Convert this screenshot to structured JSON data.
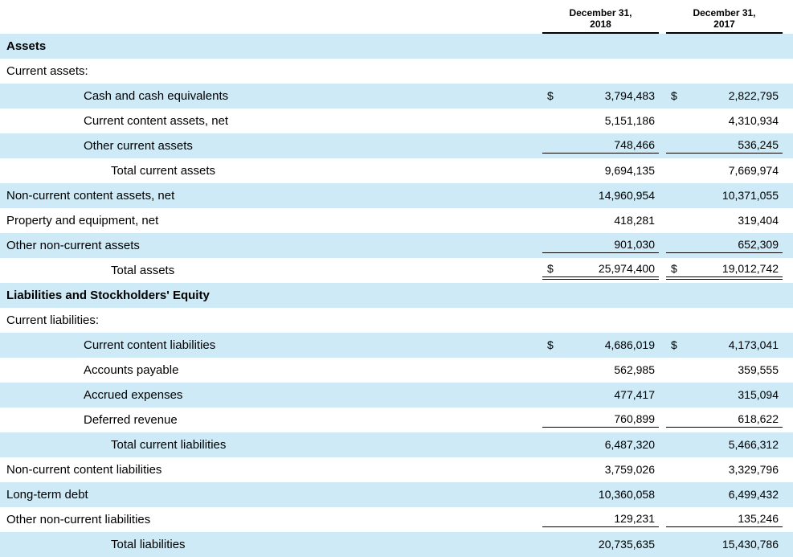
{
  "colors": {
    "row_highlight": "#cdeaf6",
    "text": "#000000",
    "rule": "#000000"
  },
  "table": {
    "currency_symbol": "$",
    "headers": [
      {
        "line1": "December 31,",
        "line2": "2018"
      },
      {
        "line1": "December 31,",
        "line2": "2017"
      }
    ],
    "rows": [
      {
        "label": "Assets",
        "indent": 0,
        "bold": true,
        "shaded": true,
        "dollar": false,
        "v1": "",
        "v2": ""
      },
      {
        "label": "Current assets:",
        "indent": 0,
        "bold": false,
        "shaded": false,
        "dollar": false,
        "v1": "",
        "v2": ""
      },
      {
        "label": "Cash and cash equivalents",
        "indent": 1,
        "bold": false,
        "shaded": true,
        "dollar": true,
        "v1": "3,794,483",
        "v2": "2,822,795"
      },
      {
        "label": "Current content assets, net",
        "indent": 1,
        "bold": false,
        "shaded": false,
        "dollar": false,
        "v1": "5,151,186",
        "v2": "4,310,934"
      },
      {
        "label": "Other current assets",
        "indent": 1,
        "bold": false,
        "shaded": true,
        "dollar": false,
        "v1": "748,466",
        "v2": "536,245",
        "underline": "single"
      },
      {
        "label": "Total current assets",
        "indent": 2,
        "bold": false,
        "shaded": false,
        "dollar": false,
        "v1": "9,694,135",
        "v2": "7,669,974"
      },
      {
        "label": "Non-current content assets, net",
        "indent": 0,
        "bold": false,
        "shaded": true,
        "dollar": false,
        "v1": "14,960,954",
        "v2": "10,371,055"
      },
      {
        "label": "Property and equipment, net",
        "indent": 0,
        "bold": false,
        "shaded": false,
        "dollar": false,
        "v1": "418,281",
        "v2": "319,404"
      },
      {
        "label": "Other non-current assets",
        "indent": 0,
        "bold": false,
        "shaded": true,
        "dollar": false,
        "v1": "901,030",
        "v2": "652,309",
        "underline": "single"
      },
      {
        "label": "Total assets",
        "indent": 2,
        "bold": false,
        "shaded": false,
        "dollar": true,
        "v1": "25,974,400",
        "v2": "19,012,742",
        "underline": "double"
      },
      {
        "label": "Liabilities and Stockholders' Equity",
        "indent": 0,
        "bold": true,
        "shaded": true,
        "dollar": false,
        "v1": "",
        "v2": ""
      },
      {
        "label": "Current liabilities:",
        "indent": 0,
        "bold": false,
        "shaded": false,
        "dollar": false,
        "v1": "",
        "v2": ""
      },
      {
        "label": "Current content liabilities",
        "indent": 1,
        "bold": false,
        "shaded": true,
        "dollar": true,
        "v1": "4,686,019",
        "v2": "4,173,041"
      },
      {
        "label": "Accounts payable",
        "indent": 1,
        "bold": false,
        "shaded": false,
        "dollar": false,
        "v1": "562,985",
        "v2": "359,555"
      },
      {
        "label": "Accrued expenses",
        "indent": 1,
        "bold": false,
        "shaded": true,
        "dollar": false,
        "v1": "477,417",
        "v2": "315,094"
      },
      {
        "label": "Deferred revenue",
        "indent": 1,
        "bold": false,
        "shaded": false,
        "dollar": false,
        "v1": "760,899",
        "v2": "618,622",
        "underline": "single"
      },
      {
        "label": "Total current liabilities",
        "indent": 2,
        "bold": false,
        "shaded": true,
        "dollar": false,
        "v1": "6,487,320",
        "v2": "5,466,312"
      },
      {
        "label": "Non-current content liabilities",
        "indent": 0,
        "bold": false,
        "shaded": false,
        "dollar": false,
        "v1": "3,759,026",
        "v2": "3,329,796"
      },
      {
        "label": "Long-term debt",
        "indent": 0,
        "bold": false,
        "shaded": true,
        "dollar": false,
        "v1": "10,360,058",
        "v2": "6,499,432"
      },
      {
        "label": "Other non-current liabilities",
        "indent": 0,
        "bold": false,
        "shaded": false,
        "dollar": false,
        "v1": "129,231",
        "v2": "135,246",
        "underline": "single"
      },
      {
        "label": "Total liabilities",
        "indent": 2,
        "bold": false,
        "shaded": true,
        "dollar": false,
        "v1": "20,735,635",
        "v2": "15,430,786"
      }
    ]
  }
}
